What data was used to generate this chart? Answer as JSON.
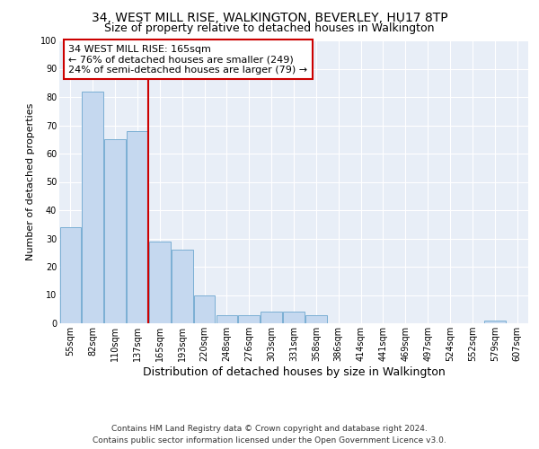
{
  "title": "34, WEST MILL RISE, WALKINGTON, BEVERLEY, HU17 8TP",
  "subtitle": "Size of property relative to detached houses in Walkington",
  "xlabel": "Distribution of detached houses by size in Walkington",
  "ylabel": "Number of detached properties",
  "bar_labels": [
    "55sqm",
    "82sqm",
    "110sqm",
    "137sqm",
    "165sqm",
    "193sqm",
    "220sqm",
    "248sqm",
    "276sqm",
    "303sqm",
    "331sqm",
    "358sqm",
    "386sqm",
    "414sqm",
    "441sqm",
    "469sqm",
    "497sqm",
    "524sqm",
    "552sqm",
    "579sqm",
    "607sqm"
  ],
  "bar_values": [
    34,
    82,
    65,
    68,
    29,
    26,
    10,
    3,
    3,
    4,
    4,
    3,
    0,
    0,
    0,
    0,
    0,
    0,
    0,
    1,
    0
  ],
  "bar_color": "#c5d8ef",
  "bar_edge_color": "#7bafd4",
  "highlight_line_color": "#cc0000",
  "highlight_bar_index": 4,
  "annotation_text": "34 WEST MILL RISE: 165sqm\n← 76% of detached houses are smaller (249)\n24% of semi-detached houses are larger (79) →",
  "annotation_box_facecolor": "#ffffff",
  "annotation_box_edgecolor": "#cc0000",
  "ylim": [
    0,
    100
  ],
  "yticks": [
    0,
    10,
    20,
    30,
    40,
    50,
    60,
    70,
    80,
    90,
    100
  ],
  "figure_facecolor": "#ffffff",
  "axes_facecolor": "#e8eef7",
  "grid_color": "#ffffff",
  "title_fontsize": 10,
  "subtitle_fontsize": 9,
  "xlabel_fontsize": 9,
  "ylabel_fontsize": 8,
  "tick_fontsize": 7,
  "annotation_fontsize": 8,
  "footer_fontsize": 6.5,
  "footer_text": "Contains HM Land Registry data © Crown copyright and database right 2024.\nContains public sector information licensed under the Open Government Licence v3.0."
}
